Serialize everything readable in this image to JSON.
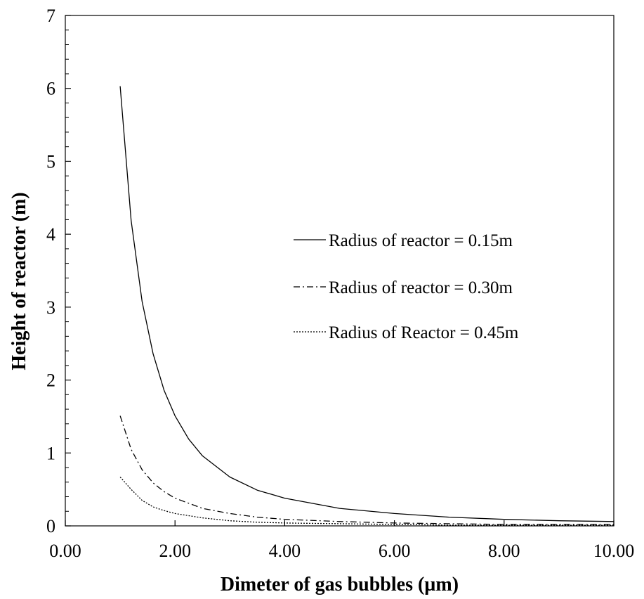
{
  "chart_data": {
    "type": "line",
    "title": "",
    "xlabel": "Dimeter of gas bubbles (µm)",
    "ylabel": "Height of reactor  (m)",
    "xlim": [
      0,
      10
    ],
    "ylim": [
      0,
      7
    ],
    "x_ticks": [
      "0.00",
      "2.00",
      "4.00",
      "6.00",
      "8.00",
      "10.00"
    ],
    "y_ticks": [
      "0",
      "1",
      "2",
      "3",
      "4",
      "5",
      "6",
      "7"
    ],
    "grid": false,
    "legend_position": "center-right",
    "series": [
      {
        "name": "Radius of reactor = 0.15m",
        "line_style": "solid",
        "x": [
          1.0,
          1.2,
          1.4,
          1.6,
          1.8,
          2.0,
          2.25,
          2.5,
          3.0,
          3.5,
          4.0,
          5.0,
          6.0,
          7.0,
          8.0,
          9.0,
          10.0
        ],
        "y": [
          6.03,
          4.19,
          3.08,
          2.36,
          1.86,
          1.51,
          1.19,
          0.96,
          0.67,
          0.49,
          0.38,
          0.24,
          0.17,
          0.12,
          0.09,
          0.07,
          0.06
        ]
      },
      {
        "name": "Radius of reactor = 0.30m",
        "line_style": "dash-dot",
        "x": [
          1.0,
          1.2,
          1.4,
          1.6,
          1.8,
          2.0,
          2.5,
          3.0,
          3.5,
          4.0,
          5.0,
          6.0,
          7.0,
          8.0,
          9.0,
          10.0
        ],
        "y": [
          1.51,
          1.05,
          0.77,
          0.59,
          0.47,
          0.38,
          0.24,
          0.17,
          0.12,
          0.09,
          0.06,
          0.04,
          0.03,
          0.02,
          0.02,
          0.02
        ]
      },
      {
        "name": "Radius of Reactor = 0.45m",
        "line_style": "dotted",
        "x": [
          1.0,
          1.2,
          1.4,
          1.6,
          1.8,
          2.0,
          2.5,
          3.0,
          3.5,
          4.0,
          5.0,
          6.0,
          7.0,
          8.0,
          9.0,
          10.0
        ],
        "y": [
          0.67,
          0.5,
          0.35,
          0.26,
          0.21,
          0.17,
          0.11,
          0.07,
          0.05,
          0.04,
          0.03,
          0.02,
          0.01,
          0.01,
          0.01,
          0.01
        ]
      }
    ]
  }
}
